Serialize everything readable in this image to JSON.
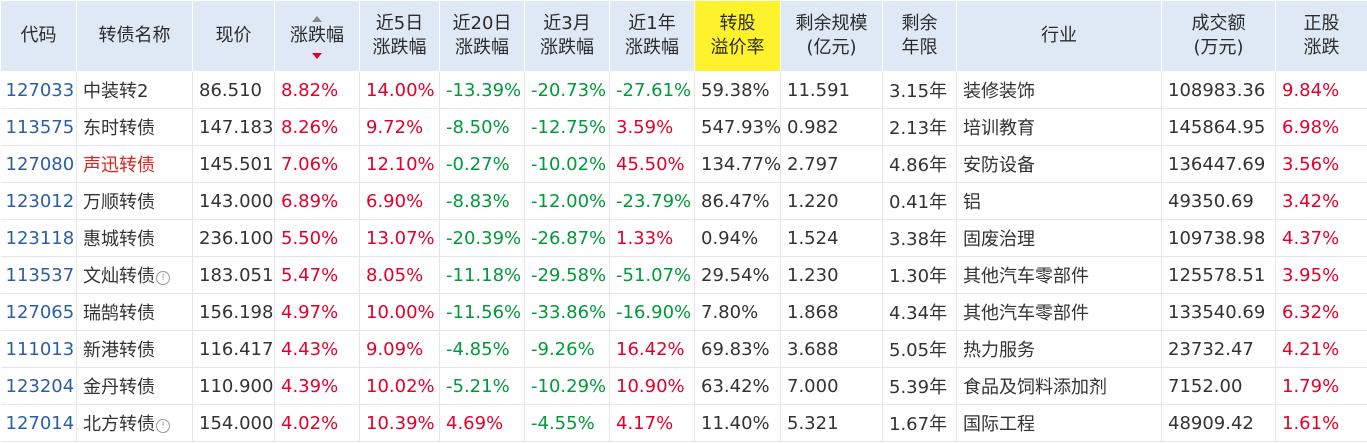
{
  "header": {
    "code": "代码",
    "name": "转债名称",
    "price": "现价",
    "change": "涨跌幅",
    "change_5d": [
      "近5日",
      "涨跌幅"
    ],
    "change_20d": [
      "近20日",
      "涨跌幅"
    ],
    "change_3m": [
      "近3月",
      "涨跌幅"
    ],
    "change_1y": [
      "近1年",
      "涨跌幅"
    ],
    "premium": [
      "转股",
      "溢价率"
    ],
    "remaining_size": [
      "剩余规模",
      "(亿元)"
    ],
    "remaining_years": [
      "剩余",
      "年限"
    ],
    "industry": "行业",
    "turnover": [
      "成交额",
      "(万元)"
    ],
    "stock_change": [
      "正股",
      "涨跌"
    ]
  },
  "colors": {
    "header_bg": "#dfe9f5",
    "highlight": "#fdf22b",
    "up": "#e4002b",
    "down": "#009a3a",
    "code": "#2a5fa8"
  },
  "rows": [
    {
      "code": "127033",
      "name": "中装转2",
      "name_red": false,
      "info": false,
      "price": "86.510",
      "chg": "8.82%",
      "c5": "14.00%",
      "c20": "-13.39%",
      "c3m": "-20.73%",
      "c1y": "-27.61%",
      "premium": "59.38%",
      "size": "11.591",
      "years": "3.15年",
      "industry": "装修装饰",
      "turnover": "108983.36",
      "stock": "9.84%"
    },
    {
      "code": "113575",
      "name": "东时转债",
      "name_red": false,
      "info": false,
      "price": "147.183",
      "chg": "8.26%",
      "c5": "9.72%",
      "c20": "-8.50%",
      "c3m": "-12.75%",
      "c1y": "3.59%",
      "premium": "547.93%",
      "size": "0.982",
      "years": "2.13年",
      "industry": "培训教育",
      "turnover": "145864.95",
      "stock": "6.98%"
    },
    {
      "code": "127080",
      "name": "声迅转债",
      "name_red": true,
      "info": false,
      "price": "145.501",
      "chg": "7.06%",
      "c5": "12.10%",
      "c20": "-0.27%",
      "c3m": "-10.02%",
      "c1y": "45.50%",
      "premium": "134.77%",
      "size": "2.797",
      "years": "4.86年",
      "industry": "安防设备",
      "turnover": "136447.69",
      "stock": "3.56%"
    },
    {
      "code": "123012",
      "name": "万顺转债",
      "name_red": false,
      "info": false,
      "price": "143.000",
      "chg": "6.89%",
      "c5": "6.90%",
      "c20": "-8.83%",
      "c3m": "-12.00%",
      "c1y": "-23.79%",
      "premium": "86.47%",
      "size": "1.220",
      "years": "0.41年",
      "industry": "铝",
      "turnover": "49350.69",
      "stock": "3.42%"
    },
    {
      "code": "123118",
      "name": "惠城转债",
      "name_red": false,
      "info": false,
      "price": "236.100",
      "chg": "5.50%",
      "c5": "13.07%",
      "c20": "-20.39%",
      "c3m": "-26.87%",
      "c1y": "1.33%",
      "premium": "0.94%",
      "size": "1.524",
      "years": "3.38年",
      "industry": "固废治理",
      "turnover": "109738.98",
      "stock": "4.37%"
    },
    {
      "code": "113537",
      "name": "文灿转债",
      "name_red": false,
      "info": true,
      "price": "183.051",
      "chg": "5.47%",
      "c5": "8.05%",
      "c20": "-11.18%",
      "c3m": "-29.58%",
      "c1y": "-51.07%",
      "premium": "29.54%",
      "size": "1.230",
      "years": "1.30年",
      "industry": "其他汽车零部件",
      "turnover": "125578.51",
      "stock": "3.95%"
    },
    {
      "code": "127065",
      "name": "瑞鹄转债",
      "name_red": false,
      "info": false,
      "price": "156.198",
      "chg": "4.97%",
      "c5": "10.00%",
      "c20": "-11.56%",
      "c3m": "-33.86%",
      "c1y": "-16.90%",
      "premium": "7.80%",
      "size": "1.868",
      "years": "4.34年",
      "industry": "其他汽车零部件",
      "turnover": "133540.69",
      "stock": "6.32%"
    },
    {
      "code": "111013",
      "name": "新港转债",
      "name_red": false,
      "info": false,
      "price": "116.417",
      "chg": "4.43%",
      "c5": "9.09%",
      "c20": "-4.85%",
      "c3m": "-9.26%",
      "c1y": "16.42%",
      "premium": "69.83%",
      "size": "3.688",
      "years": "5.05年",
      "industry": "热力服务",
      "turnover": "23732.47",
      "stock": "4.21%"
    },
    {
      "code": "123204",
      "name": "金丹转债",
      "name_red": false,
      "info": false,
      "price": "110.900",
      "chg": "4.39%",
      "c5": "10.02%",
      "c20": "-5.21%",
      "c3m": "-10.29%",
      "c1y": "10.90%",
      "premium": "63.42%",
      "size": "7.000",
      "years": "5.39年",
      "industry": "食品及饲料添加剂",
      "turnover": "7152.00",
      "stock": "1.79%"
    },
    {
      "code": "127014",
      "name": "北方转债",
      "name_red": false,
      "info": true,
      "price": "154.000",
      "chg": "4.02%",
      "c5": "10.39%",
      "c20": "4.69%",
      "c3m": "-4.55%",
      "c1y": "4.17%",
      "premium": "11.40%",
      "size": "5.321",
      "years": "1.67年",
      "industry": "国际工程",
      "turnover": "48909.42",
      "stock": "1.61%"
    }
  ]
}
